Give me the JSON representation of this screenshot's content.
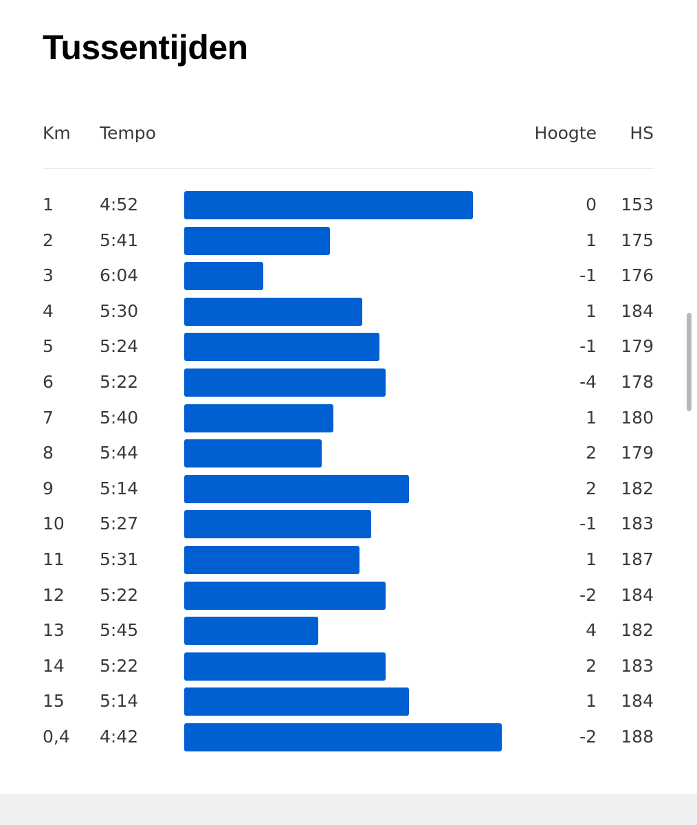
{
  "header": {
    "title": "Tussentijden"
  },
  "table": {
    "columns": [
      "Km",
      "Tempo",
      "Hoogte",
      "HS"
    ],
    "rows": [
      [
        1,
        "4:52",
        0,
        153
      ],
      [
        2,
        "5:41",
        1,
        175
      ],
      [
        3,
        "6:04",
        -1,
        176
      ],
      [
        4,
        "5:30",
        1,
        184
      ],
      [
        5,
        "5:24",
        -1,
        179
      ],
      [
        6,
        "5:22",
        -4,
        178
      ],
      [
        7,
        "5:40",
        1,
        180
      ],
      [
        8,
        "5:44",
        2,
        179
      ],
      [
        9,
        "5:14",
        2,
        182
      ],
      [
        10,
        "5:27",
        -1,
        183
      ],
      [
        11,
        "5:31",
        1,
        187
      ],
      [
        12,
        "5:22",
        -2,
        184
      ],
      [
        13,
        "5:45",
        4,
        182
      ],
      [
        14,
        "5:22",
        2,
        183
      ],
      [
        15,
        "5:14",
        1,
        184
      ],
      [
        "0,4",
        "4:42",
        -2,
        188
      ]
    ]
  }
}
